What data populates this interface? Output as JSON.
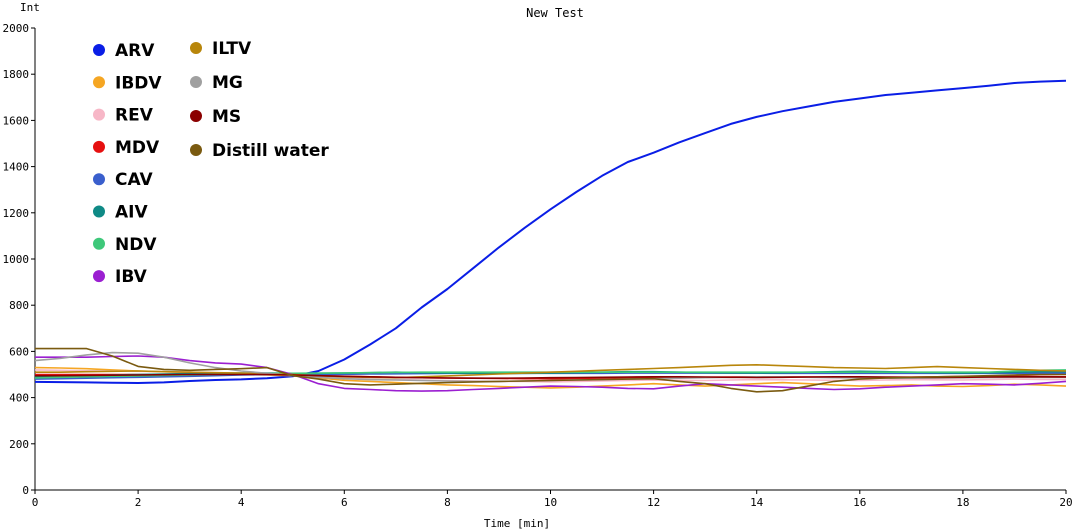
{
  "chart_data": {
    "type": "line",
    "title": "New Test",
    "xlabel": "Time [min]",
    "ylabel": "Int",
    "xlim": [
      0,
      20
    ],
    "ylim": [
      0,
      2000
    ],
    "xticks": [
      0,
      2,
      4,
      6,
      8,
      10,
      12,
      14,
      16,
      18,
      20
    ],
    "yticks": [
      0,
      200,
      400,
      600,
      800,
      1000,
      1200,
      1400,
      1600,
      1800,
      2000
    ],
    "grid": false,
    "legend_position": "top-left",
    "x": [
      0,
      0.5,
      1,
      1.5,
      2,
      2.5,
      3,
      3.5,
      4,
      4.5,
      5,
      5.5,
      6,
      6.5,
      7,
      7.5,
      8,
      8.5,
      9,
      9.5,
      10,
      10.5,
      11,
      11.5,
      12,
      12.5,
      13,
      13.5,
      14,
      14.5,
      15,
      15.5,
      16,
      16.5,
      17,
      17.5,
      18,
      18.5,
      19,
      19.5,
      20
    ],
    "series": [
      {
        "name": "ARV",
        "color": "#0a1ee6",
        "values": [
          468,
          467,
          466,
          464,
          463,
          466,
          472,
          476,
          479,
          484,
          492,
          515,
          565,
          630,
          700,
          790,
          870,
          960,
          1050,
          1135,
          1215,
          1290,
          1360,
          1420,
          1460,
          1505,
          1545,
          1585,
          1615,
          1640,
          1660,
          1680,
          1695,
          1710,
          1720,
          1730,
          1740,
          1750,
          1762,
          1768,
          1772
        ]
      },
      {
        "name": "IBDV",
        "color": "#f5a623",
        "values": [
          530,
          528,
          525,
          520,
          515,
          512,
          510,
          505,
          500,
          498,
          495,
          485,
          475,
          470,
          465,
          460,
          455,
          452,
          448,
          445,
          442,
          445,
          450,
          455,
          460,
          455,
          450,
          455,
          460,
          465,
          460,
          455,
          450,
          452,
          455,
          450,
          448,
          452,
          458,
          455,
          450
        ]
      },
      {
        "name": "REV",
        "color": "#f7b7c7",
        "values": [
          520,
          518,
          516,
          515,
          514,
          512,
          510,
          508,
          505,
          502,
          498,
          490,
          485,
          480,
          478,
          476,
          474,
          472,
          470,
          470,
          468,
          470,
          472,
          474,
          476,
          475,
          474,
          476,
          478,
          477,
          476,
          475,
          474,
          476,
          478,
          477,
          476,
          478,
          480,
          479,
          478
        ]
      },
      {
        "name": "MDV",
        "color": "#e61010",
        "values": [
          500,
          500,
          500,
          500,
          500,
          500,
          500,
          500,
          500,
          500,
          498,
          495,
          492,
          490,
          488,
          486,
          485,
          484,
          483,
          482,
          482,
          483,
          484,
          485,
          486,
          487,
          488,
          489,
          490,
          490,
          489,
          488,
          487,
          488,
          489,
          490,
          491,
          492,
          492,
          491,
          490
        ]
      },
      {
        "name": "CAV",
        "color": "#3a5fcd",
        "values": [
          480,
          482,
          484,
          486,
          488,
          490,
          492,
          495,
          498,
          500,
          500,
          500,
          501,
          502,
          503,
          504,
          505,
          505,
          505,
          505,
          505,
          505,
          505,
          506,
          506,
          506,
          506,
          506,
          506,
          505,
          505,
          505,
          505,
          505,
          505,
          505,
          505,
          505,
          505,
          505,
          505
        ]
      },
      {
        "name": "AIV",
        "color": "#0f8a86",
        "values": [
          490,
          492,
          495,
          498,
          500,
          502,
          504,
          505,
          506,
          506,
          505,
          505,
          506,
          508,
          510,
          508,
          506,
          505,
          504,
          505,
          506,
          508,
          510,
          512,
          512,
          510,
          508,
          507,
          506,
          508,
          510,
          512,
          514,
          512,
          510,
          508,
          506,
          508,
          510,
          512,
          512
        ]
      },
      {
        "name": "NDV",
        "color": "#3ec87a",
        "values": [
          485,
          488,
          490,
          492,
          494,
          496,
          498,
          500,
          502,
          504,
          505,
          506,
          507,
          508,
          509,
          510,
          510,
          510,
          510,
          510,
          510,
          510,
          510,
          510,
          510,
          510,
          510,
          510,
          510,
          510,
          510,
          510,
          510,
          510,
          510,
          510,
          510,
          510,
          515,
          518,
          520
        ]
      },
      {
        "name": "IBV",
        "color": "#9b1fd1",
        "values": [
          575,
          575,
          575,
          578,
          580,
          575,
          560,
          550,
          545,
          530,
          500,
          460,
          440,
          435,
          430,
          428,
          430,
          435,
          440,
          445,
          450,
          448,
          445,
          440,
          438,
          450,
          460,
          455,
          450,
          445,
          440,
          435,
          438,
          445,
          450,
          455,
          460,
          458,
          455,
          462,
          470
        ]
      },
      {
        "name": "ILTV",
        "color": "#b8860b",
        "values": [
          510,
          510,
          512,
          514,
          515,
          512,
          510,
          508,
          506,
          504,
          500,
          495,
          490,
          488,
          486,
          490,
          494,
          498,
          502,
          506,
          510,
          514,
          518,
          522,
          526,
          530,
          535,
          540,
          542,
          538,
          534,
          530,
          528,
          526,
          530,
          534,
          530,
          526,
          522,
          518,
          515
        ]
      },
      {
        "name": "MG",
        "color": "#a0a0a0",
        "values": [
          560,
          570,
          585,
          595,
          592,
          575,
          550,
          530,
          515,
          505,
          495,
          488,
          482,
          478,
          476,
          474,
          472,
          470,
          470,
          472,
          474,
          476,
          478,
          480,
          482,
          484,
          486,
          488,
          490,
          490,
          488,
          486,
          485,
          484,
          484,
          485,
          486,
          487,
          488,
          488,
          488
        ]
      },
      {
        "name": "MS",
        "color": "#8b0000",
        "values": [
          495,
          495,
          496,
          497,
          498,
          499,
          500,
          500,
          500,
          500,
          498,
          495,
          492,
          490,
          488,
          486,
          485,
          484,
          484,
          485,
          486,
          487,
          488,
          489,
          490,
          490,
          489,
          488,
          487,
          488,
          489,
          490,
          490,
          489,
          488,
          487,
          488,
          489,
          490,
          490,
          489
        ]
      },
      {
        "name": "Distill water",
        "color": "#7a5a10",
        "values": [
          612,
          612,
          612,
          580,
          535,
          522,
          518,
          522,
          525,
          530,
          495,
          480,
          460,
          455,
          458,
          462,
          465,
          468,
          470,
          472,
          474,
          476,
          478,
          480,
          482,
          470,
          460,
          440,
          425,
          430,
          450,
          470,
          480,
          485,
          488,
          490,
          492,
          495,
          498,
          500,
          500
        ]
      }
    ]
  }
}
